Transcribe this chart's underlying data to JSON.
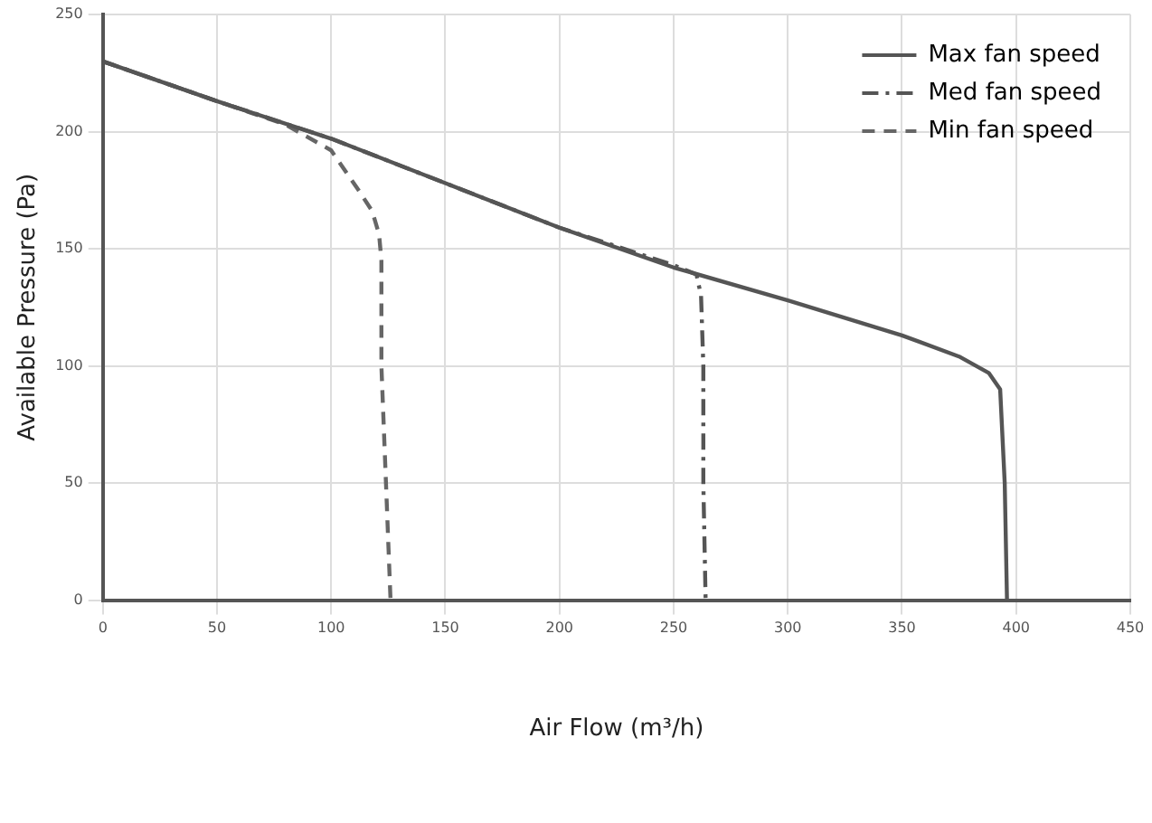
{
  "chart_data": {
    "type": "line",
    "xlabel": "Air Flow (m³/h)",
    "ylabel": "Available Pressure (Pa)",
    "xlim": [
      0,
      450
    ],
    "xticks": [
      0,
      50,
      100,
      150,
      200,
      250,
      300,
      350,
      400,
      450
    ],
    "ylim": [
      0,
      250
    ],
    "yticks": [
      0,
      50,
      100,
      150,
      200,
      250
    ],
    "grid": true,
    "legend": "top right",
    "marker": "none",
    "series": [
      {
        "name": "Max fan speed",
        "color": "#555555",
        "line_style": "solid",
        "x": [
          0,
          50,
          100,
          150,
          200,
          250,
          300,
          350,
          375,
          388,
          393,
          395,
          396
        ],
        "values": [
          230,
          213,
          197,
          178,
          159,
          142,
          128,
          113,
          104,
          97,
          90,
          50,
          0
        ]
      },
      {
        "name": "Med fan speed",
        "color": "#555555",
        "line_style": "dashdot",
        "x": [
          0,
          50,
          100,
          150,
          200,
          250,
          260,
          262,
          263,
          263,
          264
        ],
        "values": [
          230,
          213,
          197,
          178,
          159,
          143,
          139,
          130,
          100,
          50,
          0
        ]
      },
      {
        "name": "Min fan speed",
        "color": "#666666",
        "line_style": "dashed",
        "x": [
          0,
          50,
          65,
          80,
          100,
          112,
          118,
          121,
          122,
          122,
          124,
          126
        ],
        "values": [
          230,
          213,
          208,
          203,
          192,
          175,
          166,
          156,
          145,
          100,
          50,
          0
        ]
      }
    ]
  }
}
